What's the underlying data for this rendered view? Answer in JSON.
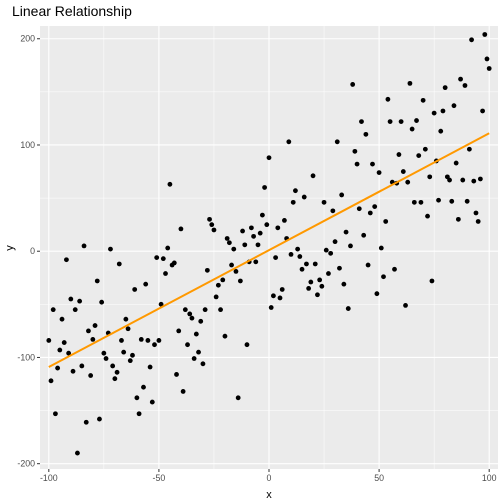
{
  "colors": {
    "panel": "#ebebeb",
    "grid_major": "#ffffff",
    "points": "#000000",
    "fit_line": "#ff9900",
    "tick_text": "#4d4d4d",
    "tick_mark": "#333333"
  },
  "chart_data": {
    "type": "scatter",
    "title": "Linear Relationship",
    "xlabel": "x",
    "ylabel": "y",
    "xlim": [
      -104,
      104
    ],
    "ylim": [
      -205,
      212
    ],
    "x_ticks": [
      -100,
      -50,
      0,
      50,
      100
    ],
    "x_tick_labels": [
      "-100",
      "-50",
      "0",
      "50",
      "100"
    ],
    "y_ticks": [
      -200,
      -100,
      0,
      100,
      200
    ],
    "y_tick_labels": [
      "-200",
      "-100",
      "0",
      "100",
      "200"
    ],
    "grid": true,
    "legend": "none",
    "fit_line": {
      "x": [
        -100,
        100
      ],
      "y": [
        -109,
        111
      ]
    },
    "points": [
      [
        -100,
        -84
      ],
      [
        -99,
        -122
      ],
      [
        -98,
        -55
      ],
      [
        -97,
        -153
      ],
      [
        -96,
        -110
      ],
      [
        -95,
        -93
      ],
      [
        -94,
        -64
      ],
      [
        -93,
        -86
      ],
      [
        -92,
        -8
      ],
      [
        -91,
        -96
      ],
      [
        -90,
        -45
      ],
      [
        -89,
        -113
      ],
      [
        -88,
        -55
      ],
      [
        -87,
        -190
      ],
      [
        -86,
        -47
      ],
      [
        -85,
        -108
      ],
      [
        -84,
        5
      ],
      [
        -83,
        -161
      ],
      [
        -82,
        -75
      ],
      [
        -81,
        -117
      ],
      [
        -80,
        -83
      ],
      [
        -79,
        -70
      ],
      [
        -78,
        -28
      ],
      [
        -77,
        -158
      ],
      [
        -76,
        -48
      ],
      [
        -75,
        -96
      ],
      [
        -74,
        -101
      ],
      [
        -73,
        -77
      ],
      [
        -72,
        2
      ],
      [
        -71,
        -108
      ],
      [
        -70,
        -120
      ],
      [
        -69,
        -114
      ],
      [
        -68,
        -12
      ],
      [
        -67,
        -84
      ],
      [
        -66,
        -95
      ],
      [
        -65,
        -64
      ],
      [
        -64,
        -73
      ],
      [
        -63,
        -103
      ],
      [
        -62,
        -98
      ],
      [
        -61,
        -36
      ],
      [
        -60,
        -138
      ],
      [
        -59,
        -153
      ],
      [
        -58,
        -83
      ],
      [
        -57,
        -128
      ],
      [
        -56,
        -31
      ],
      [
        -55,
        -84
      ],
      [
        -54,
        -109
      ],
      [
        -53,
        -142
      ],
      [
        -52,
        -88
      ],
      [
        -51,
        -6
      ],
      [
        -50,
        -84
      ],
      [
        -49,
        -50
      ],
      [
        -48,
        -7
      ],
      [
        -47,
        -21
      ],
      [
        -46,
        3
      ],
      [
        -45,
        63
      ],
      [
        -44,
        -13
      ],
      [
        -43,
        -11
      ],
      [
        -42,
        -116
      ],
      [
        -41,
        -75
      ],
      [
        -40,
        21
      ],
      [
        -39,
        -132
      ],
      [
        -38,
        -55
      ],
      [
        -37,
        -88
      ],
      [
        -36,
        -59
      ],
      [
        -35,
        -63
      ],
      [
        -34,
        -101
      ],
      [
        -33,
        -78
      ],
      [
        -32,
        -95
      ],
      [
        -31,
        -66
      ],
      [
        -30,
        -106
      ],
      [
        -29,
        -55
      ],
      [
        -28,
        -18
      ],
      [
        -27,
        30
      ],
      [
        -26,
        25
      ],
      [
        -25,
        20
      ],
      [
        -24,
        -43
      ],
      [
        -23,
        -32
      ],
      [
        -22,
        -55
      ],
      [
        -21,
        -27
      ],
      [
        -20,
        -80
      ],
      [
        -19,
        12
      ],
      [
        -18,
        8
      ],
      [
        -17,
        -13
      ],
      [
        -16,
        2
      ],
      [
        -15,
        -19
      ],
      [
        -14,
        -138
      ],
      [
        -13,
        -28
      ],
      [
        -12,
        19
      ],
      [
        -11,
        6
      ],
      [
        -10,
        -88
      ],
      [
        -9,
        -10
      ],
      [
        -8,
        22
      ],
      [
        -7,
        14
      ],
      [
        -6,
        -10
      ],
      [
        -5,
        6
      ],
      [
        -4,
        17
      ],
      [
        -3,
        34
      ],
      [
        -2,
        60
      ],
      [
        -1,
        25
      ],
      [
        0,
        88
      ],
      [
        1,
        -53
      ],
      [
        2,
        -42
      ],
      [
        3,
        -6
      ],
      [
        4,
        22
      ],
      [
        5,
        -44
      ],
      [
        6,
        -36
      ],
      [
        7,
        29
      ],
      [
        8,
        12
      ],
      [
        9,
        103
      ],
      [
        10,
        -3
      ],
      [
        11,
        46
      ],
      [
        12,
        57
      ],
      [
        13,
        2
      ],
      [
        14,
        -5
      ],
      [
        15,
        -17
      ],
      [
        16,
        51
      ],
      [
        17,
        -12
      ],
      [
        18,
        -35
      ],
      [
        19,
        -29
      ],
      [
        20,
        71
      ],
      [
        21,
        -12
      ],
      [
        22,
        -41
      ],
      [
        23,
        -27
      ],
      [
        24,
        -33
      ],
      [
        25,
        46
      ],
      [
        26,
        1
      ],
      [
        27,
        -21
      ],
      [
        28,
        -2
      ],
      [
        29,
        38
      ],
      [
        30,
        9
      ],
      [
        31,
        103
      ],
      [
        32,
        -16
      ],
      [
        33,
        53
      ],
      [
        34,
        -31
      ],
      [
        35,
        18
      ],
      [
        36,
        -54
      ],
      [
        37,
        5
      ],
      [
        38,
        157
      ],
      [
        39,
        94
      ],
      [
        40,
        82
      ],
      [
        41,
        40
      ],
      [
        42,
        122
      ],
      [
        43,
        15
      ],
      [
        44,
        110
      ],
      [
        45,
        -13
      ],
      [
        46,
        36
      ],
      [
        47,
        82
      ],
      [
        48,
        42
      ],
      [
        49,
        -40
      ],
      [
        50,
        74
      ],
      [
        51,
        3
      ],
      [
        52,
        -24
      ],
      [
        53,
        28
      ],
      [
        54,
        143
      ],
      [
        55,
        122
      ],
      [
        56,
        65
      ],
      [
        57,
        -17
      ],
      [
        58,
        64
      ],
      [
        59,
        91
      ],
      [
        60,
        122
      ],
      [
        61,
        75
      ],
      [
        62,
        -51
      ],
      [
        63,
        65
      ],
      [
        64,
        158
      ],
      [
        65,
        115
      ],
      [
        66,
        46
      ],
      [
        67,
        123
      ],
      [
        68,
        90
      ],
      [
        69,
        46
      ],
      [
        70,
        142
      ],
      [
        71,
        96
      ],
      [
        72,
        33
      ],
      [
        73,
        70
      ],
      [
        74,
        -28
      ],
      [
        75,
        130
      ],
      [
        76,
        85
      ],
      [
        77,
        48
      ],
      [
        78,
        113
      ],
      [
        79,
        132
      ],
      [
        80,
        154
      ],
      [
        81,
        70
      ],
      [
        82,
        67
      ],
      [
        83,
        47
      ],
      [
        84,
        137
      ],
      [
        85,
        83
      ],
      [
        86,
        30
      ],
      [
        87,
        162
      ],
      [
        88,
        67
      ],
      [
        89,
        156
      ],
      [
        90,
        47
      ],
      [
        91,
        96
      ],
      [
        92,
        199
      ],
      [
        93,
        66
      ],
      [
        94,
        36
      ],
      [
        95,
        28
      ],
      [
        96,
        68
      ],
      [
        97,
        132
      ],
      [
        98,
        204
      ],
      [
        99,
        181
      ],
      [
        100,
        172
      ]
    ]
  }
}
